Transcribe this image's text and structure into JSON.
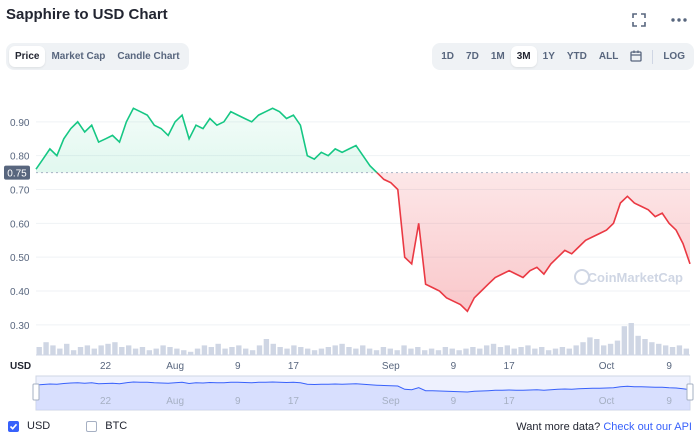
{
  "header": {
    "title": "Sapphire to USD Chart",
    "fullscreen_icon": "fullscreen-icon",
    "more_icon": "more-icon"
  },
  "tabs": [
    {
      "label": "Price",
      "active": true
    },
    {
      "label": "Market Cap",
      "active": false
    },
    {
      "label": "Candle Chart",
      "active": false
    }
  ],
  "ranges": [
    {
      "label": "1D",
      "active": false
    },
    {
      "label": "7D",
      "active": false
    },
    {
      "label": "1M",
      "active": false
    },
    {
      "label": "3M",
      "active": true
    },
    {
      "label": "1Y",
      "active": false
    },
    {
      "label": "YTD",
      "active": false
    },
    {
      "label": "ALL",
      "active": false
    }
  ],
  "calendar_icon": "calendar-icon",
  "log_label": "LOG",
  "colors": {
    "up": "#16c784",
    "down": "#ea3943",
    "navigator": "#3861fb",
    "volume": "#cfd6e4"
  },
  "chart_data": {
    "type": "line",
    "ylim": [
      0.27,
      1.0
    ],
    "yticks": [
      "0.90",
      "0.80",
      "0.70",
      "0.60",
      "0.50",
      "0.40",
      "0.30"
    ],
    "ytick_values": [
      0.9,
      0.8,
      0.7,
      0.6,
      0.5,
      0.4,
      0.3
    ],
    "reference_value": 0.75,
    "reference_label": "0.75",
    "x_unit_label": "USD",
    "xtick_labels": [
      "22",
      "Aug",
      "9",
      "17",
      "Sep",
      "9",
      "17",
      "Oct",
      "9"
    ],
    "xtick_positions": [
      10,
      20,
      29,
      37,
      51,
      60,
      68,
      82,
      91
    ],
    "x": [
      0,
      1,
      2,
      3,
      4,
      5,
      6,
      7,
      8,
      9,
      10,
      11,
      12,
      13,
      14,
      15,
      16,
      17,
      18,
      19,
      20,
      21,
      22,
      23,
      24,
      25,
      26,
      27,
      28,
      29,
      30,
      31,
      32,
      33,
      34,
      35,
      36,
      37,
      38,
      39,
      40,
      41,
      42,
      43,
      44,
      45,
      46,
      47,
      48,
      49,
      50,
      51,
      52,
      53,
      54,
      55,
      56,
      57,
      58,
      59,
      60,
      61,
      62,
      63,
      64,
      65,
      66,
      67,
      68,
      69,
      70,
      71,
      72,
      73,
      74,
      75,
      76,
      77,
      78,
      79,
      80,
      81,
      82,
      83,
      84,
      85,
      86,
      87,
      88,
      89,
      90,
      91,
      92,
      93,
      94
    ],
    "values": [
      0.76,
      0.79,
      0.82,
      0.8,
      0.85,
      0.88,
      0.9,
      0.87,
      0.89,
      0.84,
      0.85,
      0.86,
      0.84,
      0.9,
      0.94,
      0.93,
      0.92,
      0.89,
      0.88,
      0.86,
      0.9,
      0.92,
      0.85,
      0.89,
      0.88,
      0.91,
      0.89,
      0.9,
      0.93,
      0.92,
      0.91,
      0.9,
      0.92,
      0.93,
      0.94,
      0.93,
      0.91,
      0.92,
      0.89,
      0.8,
      0.79,
      0.81,
      0.8,
      0.82,
      0.81,
      0.82,
      0.83,
      0.8,
      0.77,
      0.75,
      0.73,
      0.72,
      0.7,
      0.5,
      0.48,
      0.6,
      0.42,
      0.41,
      0.4,
      0.38,
      0.37,
      0.36,
      0.34,
      0.38,
      0.4,
      0.42,
      0.44,
      0.45,
      0.46,
      0.45,
      0.44,
      0.46,
      0.47,
      0.45,
      0.48,
      0.5,
      0.52,
      0.51,
      0.53,
      0.55,
      0.56,
      0.57,
      0.58,
      0.6,
      0.66,
      0.68,
      0.66,
      0.65,
      0.64,
      0.62,
      0.63,
      0.6,
      0.58,
      0.54,
      0.48
    ],
    "volume": [
      0.25,
      0.4,
      0.3,
      0.2,
      0.35,
      0.15,
      0.25,
      0.3,
      0.2,
      0.3,
      0.35,
      0.4,
      0.25,
      0.3,
      0.2,
      0.25,
      0.15,
      0.2,
      0.3,
      0.25,
      0.2,
      0.15,
      0.1,
      0.2,
      0.3,
      0.25,
      0.35,
      0.2,
      0.25,
      0.3,
      0.2,
      0.15,
      0.3,
      0.5,
      0.35,
      0.25,
      0.2,
      0.3,
      0.25,
      0.2,
      0.15,
      0.2,
      0.25,
      0.3,
      0.35,
      0.25,
      0.2,
      0.3,
      0.2,
      0.15,
      0.25,
      0.2,
      0.15,
      0.3,
      0.2,
      0.25,
      0.15,
      0.2,
      0.15,
      0.25,
      0.2,
      0.15,
      0.2,
      0.25,
      0.2,
      0.3,
      0.35,
      0.25,
      0.3,
      0.2,
      0.25,
      0.3,
      0.2,
      0.25,
      0.15,
      0.2,
      0.25,
      0.2,
      0.3,
      0.4,
      0.55,
      0.5,
      0.3,
      0.35,
      0.45,
      0.9,
      1.0,
      0.6,
      0.5,
      0.4,
      0.35,
      0.3,
      0.25,
      0.3,
      0.2
    ],
    "watermark": "CoinMarketCap"
  },
  "footer": {
    "usd_label": "USD",
    "usd_checked": true,
    "btc_label": "BTC",
    "btc_checked": false,
    "api_prompt": "Want more data?",
    "api_link": "Check out our API"
  }
}
